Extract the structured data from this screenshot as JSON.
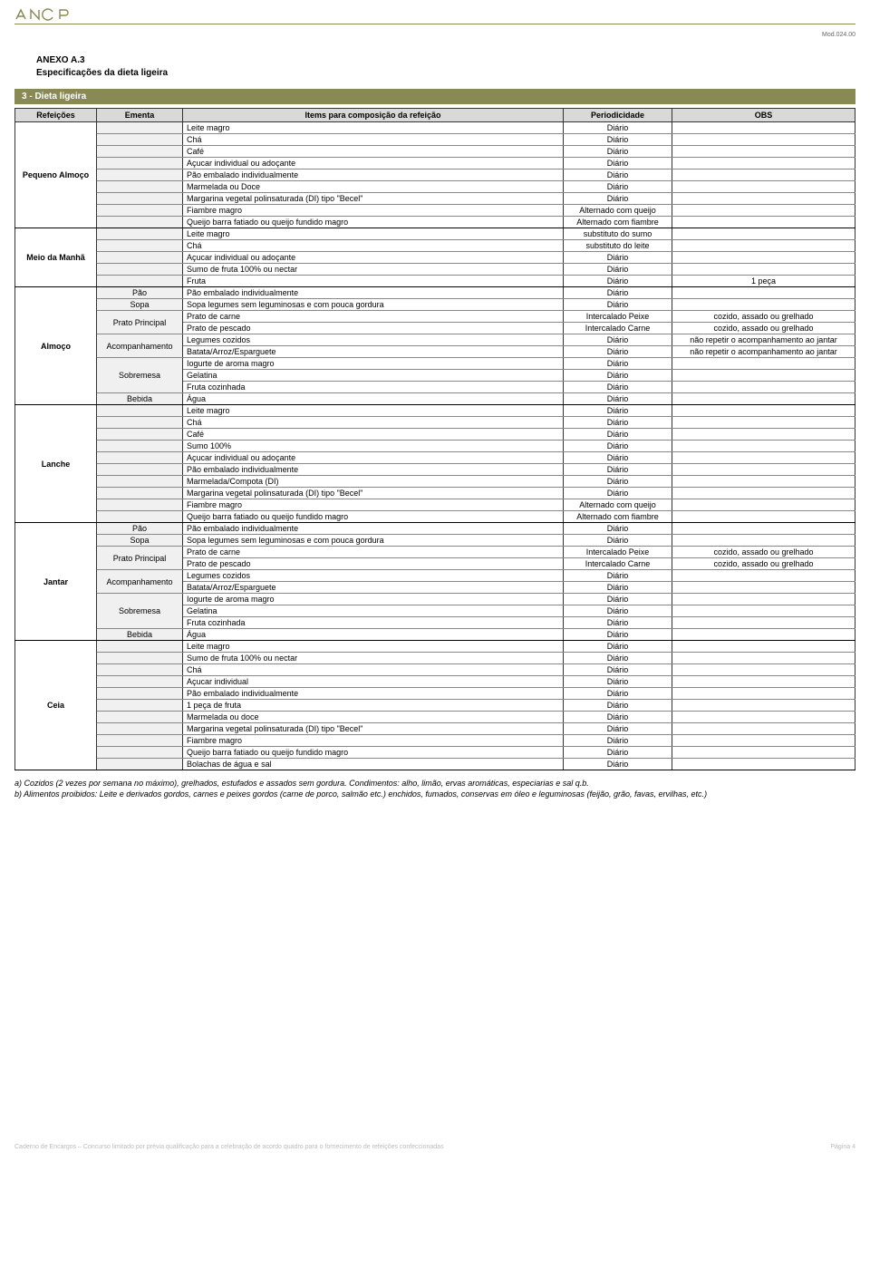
{
  "header": {
    "mod": "Mod.024.00",
    "anexo": "ANEXO A.3",
    "subtitle": "Especificações da dieta ligeira",
    "section_bar": "3 - Dieta ligeira"
  },
  "columns": {
    "refeicoes": "Refeições",
    "ementa": "Ementa",
    "items": "Items para composição da refeição",
    "periodicidade": "Periodicidade",
    "obs": "OBS"
  },
  "meals": [
    {
      "name": "Pequeno Almoço",
      "rows": [
        {
          "ementa": "",
          "item": "Leite magro",
          "per": "Diário",
          "obs": ""
        },
        {
          "ementa": "",
          "item": "Chá",
          "per": "Diário",
          "obs": ""
        },
        {
          "ementa": "",
          "item": "Café",
          "per": "Diário",
          "obs": ""
        },
        {
          "ementa": "",
          "item": "Açucar individual ou adoçante",
          "per": "Diário",
          "obs": ""
        },
        {
          "ementa": "",
          "item": "Pão embalado individualmente",
          "per": "Diário",
          "obs": ""
        },
        {
          "ementa": "",
          "item": "Marmelada ou Doce",
          "per": "Diário",
          "obs": ""
        },
        {
          "ementa": "",
          "item": "Margarina vegetal polinsaturada (DI) tipo \"Becel\"",
          "per": "Diário",
          "obs": ""
        },
        {
          "ementa": "",
          "item": "Fiambre magro",
          "per": "Alternado com queijo",
          "obs": ""
        },
        {
          "ementa": "",
          "item": "Queijo barra fatiado ou queijo fundido magro",
          "per": "Alternado com fiambre",
          "obs": ""
        }
      ]
    },
    {
      "name": "Meio da Manhã",
      "rows": [
        {
          "ementa": "",
          "item": "Leite magro",
          "per": "substituto do sumo",
          "obs": ""
        },
        {
          "ementa": "",
          "item": "Chá",
          "per": "substituto do leite",
          "obs": ""
        },
        {
          "ementa": "",
          "item": "Açucar individual ou adoçante",
          "per": "Diário",
          "obs": ""
        },
        {
          "ementa": "",
          "item": "Sumo de fruta 100% ou nectar",
          "per": "Diário",
          "obs": ""
        },
        {
          "ementa": "",
          "item": "Fruta",
          "per": "Diário",
          "obs": "1 peça"
        }
      ]
    },
    {
      "name": "Almoço",
      "rows": [
        {
          "ementa": "Pão",
          "item": "Pão embalado individualmente",
          "per": "Diário",
          "obs": ""
        },
        {
          "ementa": "Sopa",
          "item": "Sopa legumes sem leguminosas e com pouca gordura",
          "per": "Diário",
          "obs": ""
        },
        {
          "ementa": "Prato Principal",
          "ementa_span": 2,
          "item": "Prato de carne",
          "per": "Intercalado Peixe",
          "obs": "cozido, assado ou grelhado"
        },
        {
          "ementa_skip": true,
          "item": "Prato de pescado",
          "per": "Intercalado Carne",
          "obs": "cozido, assado ou grelhado"
        },
        {
          "ementa": "Acompanhamento",
          "ementa_span": 2,
          "item": "Legumes cozidos",
          "per": "Diário",
          "obs": "não repetir o acompanhamento ao jantar"
        },
        {
          "ementa_skip": true,
          "item": "Batata/Arroz/Esparguete",
          "per": "Diário",
          "obs": "não repetir o acompanhamento ao jantar"
        },
        {
          "ementa": "Sobremesa",
          "ementa_span": 3,
          "item": "Iogurte de aroma magro",
          "per": "Diário",
          "obs": ""
        },
        {
          "ementa_skip": true,
          "item": "Gelatina",
          "per": "Diário",
          "obs": ""
        },
        {
          "ementa_skip": true,
          "item": "Fruta cozinhada",
          "per": "Diário",
          "obs": ""
        },
        {
          "ementa": "Bebida",
          "item": "Água",
          "per": "Diário",
          "obs": ""
        }
      ]
    },
    {
      "name": "Lanche",
      "rows": [
        {
          "ementa": "",
          "item": "Leite magro",
          "per": "Diário",
          "obs": ""
        },
        {
          "ementa": "",
          "item": "Chá",
          "per": "Diário",
          "obs": ""
        },
        {
          "ementa": "",
          "item": "Café",
          "per": "Diário",
          "obs": ""
        },
        {
          "ementa": "",
          "item": "Sumo 100%",
          "per": "Diário",
          "obs": ""
        },
        {
          "ementa": "",
          "item": "Açucar individual ou adoçante",
          "per": "Diário",
          "obs": ""
        },
        {
          "ementa": "",
          "item": "Pão embalado individualmente",
          "per": "Diário",
          "obs": ""
        },
        {
          "ementa": "",
          "item": "Marmelada/Compota (DI)",
          "per": "Diário",
          "obs": ""
        },
        {
          "ementa": "",
          "item": "Margarina vegetal polinsaturada (DI) tipo \"Becel\"",
          "per": "Diário",
          "obs": ""
        },
        {
          "ementa": "",
          "item": "Fiambre magro",
          "per": "Alternado com queijo",
          "obs": ""
        },
        {
          "ementa": "",
          "item": "Queijo barra fatiado ou queijo fundido magro",
          "per": "Alternado com fiambre",
          "obs": ""
        }
      ]
    },
    {
      "name": "Jantar",
      "rows": [
        {
          "ementa": "Pão",
          "item": "Pão embalado individualmente",
          "per": "Diário",
          "obs": ""
        },
        {
          "ementa": "Sopa",
          "item": "Sopa legumes sem leguminosas e com pouca gordura",
          "per": "Diário",
          "obs": ""
        },
        {
          "ementa": "Prato Principal",
          "ementa_span": 2,
          "item": "Prato de carne",
          "per": "Intercalado Peixe",
          "obs": "cozido, assado ou grelhado"
        },
        {
          "ementa_skip": true,
          "item": "Prato de pescado",
          "per": "Intercalado Carne",
          "obs": "cozido, assado ou grelhado"
        },
        {
          "ementa": "Acompanhamento",
          "ementa_span": 2,
          "item": "Legumes cozidos",
          "per": "Diário",
          "obs": ""
        },
        {
          "ementa_skip": true,
          "item": "Batata/Arroz/Esparguete",
          "per": "Diário",
          "obs": ""
        },
        {
          "ementa": "Sobremesa",
          "ementa_span": 3,
          "item": "Iogurte de aroma magro",
          "per": "Diário",
          "obs": ""
        },
        {
          "ementa_skip": true,
          "item": "Gelatina",
          "per": "Diário",
          "obs": ""
        },
        {
          "ementa_skip": true,
          "item": "Fruta cozinhada",
          "per": "Diário",
          "obs": ""
        },
        {
          "ementa": "Bebida",
          "item": "Água",
          "per": "Diário",
          "obs": ""
        }
      ]
    },
    {
      "name": "Ceia",
      "rows": [
        {
          "ementa": "",
          "item": "Leite magro",
          "per": "Diário",
          "obs": ""
        },
        {
          "ementa": "",
          "item": "Sumo de fruta 100% ou nectar",
          "per": "Diário",
          "obs": ""
        },
        {
          "ementa": "",
          "item": "Chá",
          "per": "Diário",
          "obs": ""
        },
        {
          "ementa": "",
          "item": "Açucar individual",
          "per": "Diário",
          "obs": ""
        },
        {
          "ementa": "",
          "item": "Pão embalado individualmente",
          "per": "Diário",
          "obs": ""
        },
        {
          "ementa": "",
          "item": "1 peça de fruta",
          "per": "Diário",
          "obs": ""
        },
        {
          "ementa": "",
          "item": "Marmelada ou doce",
          "per": "Diário",
          "obs": ""
        },
        {
          "ementa": "",
          "item": "Margarina vegetal polinsaturada (DI) tipo \"Becel\"",
          "per": "Diário",
          "obs": ""
        },
        {
          "ementa": "",
          "item": "Fiambre magro",
          "per": "Diário",
          "obs": ""
        },
        {
          "ementa": "",
          "item": "Queijo barra fatiado ou queijo fundido magro",
          "per": "Diário",
          "obs": ""
        },
        {
          "ementa": "",
          "item": "Bolachas de água e sal",
          "per": "Diário",
          "obs": ""
        }
      ]
    }
  ],
  "notes": {
    "a": "a) Cozidos (2 vezes por semana no máximo), grelhados, estufados e assados sem gordura. Condimentos: alho, limão, ervas aromáticas, especiarias e sal q.b.",
    "b": "b) Alimentos proibidos: Leite e derivados gordos, carnes e peixes gordos (carne de porco, salmão etc.) enchidos, fumados, conservas em óleo e leguminosas (feijão, grão, favas, ervilhas, etc.)"
  },
  "footer": {
    "left": "Caderno de Encargos – Concurso limitado por prévia qualificação para a celebração de acordo quadro para o fornecimento de refeições confeccionadas",
    "right": "Página 4"
  },
  "colors": {
    "olive": "#888954",
    "header_bg": "#d9d9d9",
    "ementa_bg": "#f0f0f0"
  }
}
